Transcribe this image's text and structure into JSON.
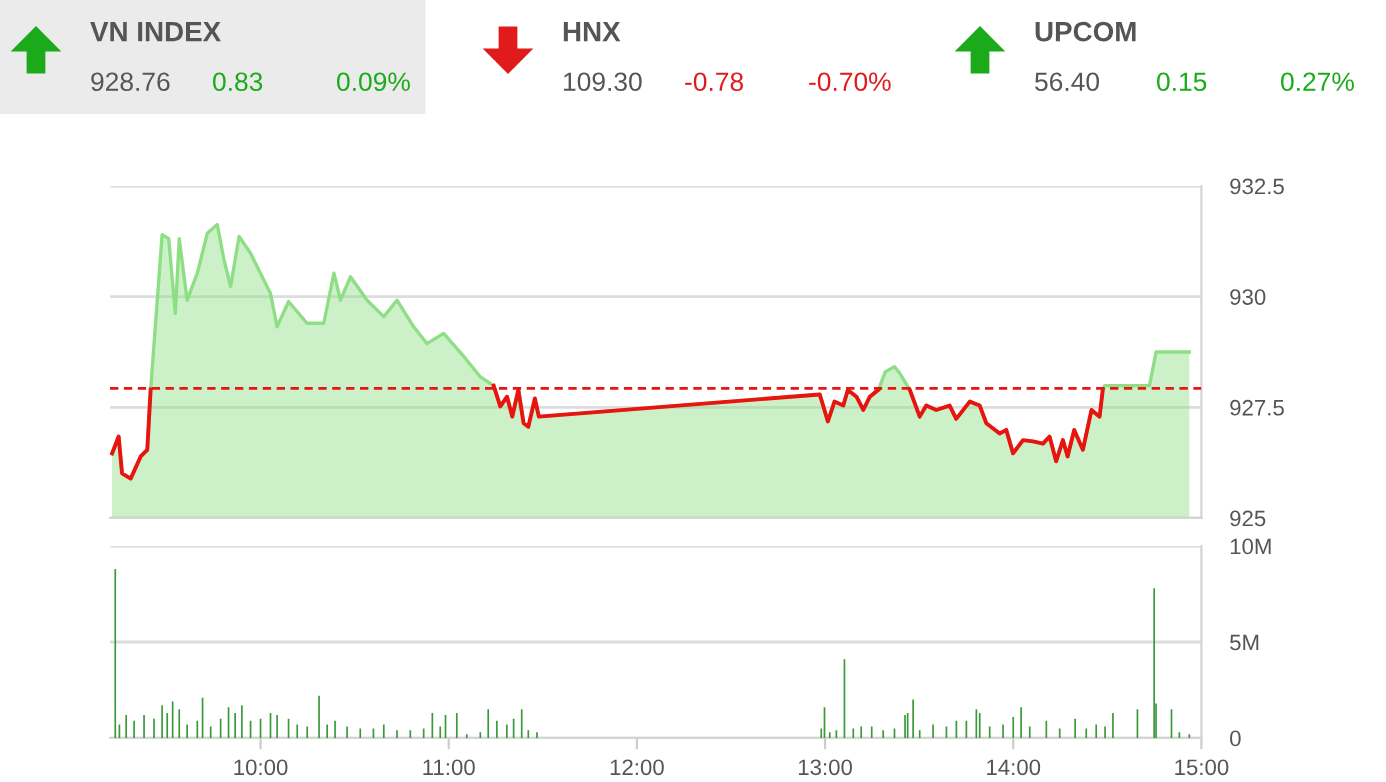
{
  "chart_data": [
    {
      "type": "other",
      "annotations": [
        "VN INDEX",
        "928.76",
        "0.83",
        "0.09%",
        "HNX",
        "109.30",
        "-0.78",
        "-0.70%",
        "UPCOM",
        "56.40",
        "0.15",
        "0.27%"
      ]
    },
    {
      "type": "area",
      "x": [
        9.211,
        9.246,
        9.264,
        9.31,
        9.363,
        9.398,
        9.416,
        9.477,
        9.512,
        9.547,
        9.568,
        9.61,
        9.664,
        9.717,
        9.77,
        9.806,
        9.841,
        9.886,
        9.947,
        10.053,
        10.088,
        10.149,
        10.247,
        10.336,
        10.39,
        10.425,
        10.478,
        10.566,
        10.655,
        10.725,
        10.814,
        10.884,
        10.973,
        11.08,
        11.168,
        11.239,
        11.274,
        11.31,
        11.338,
        11.37,
        11.398,
        11.423,
        11.458,
        11.479,
        12.972,
        13.015,
        13.05,
        13.097,
        13.121,
        13.167,
        13.203,
        13.238,
        13.284,
        13.32,
        13.369,
        13.397,
        13.45,
        13.503,
        13.538,
        13.591,
        13.662,
        13.697,
        13.769,
        13.822,
        13.857,
        13.928,
        13.963,
        13.999,
        14.052,
        14.105,
        14.158,
        14.193,
        14.228,
        14.264,
        14.289,
        14.324,
        14.37,
        14.416,
        14.459,
        14.476,
        14.487,
        14.724,
        14.759,
        14.936
      ],
      "series": [
        {
          "type": "area",
          "color": "#8ede86",
          "values": [
            926.46,
            926.84,
            926.01,
            925.89,
            926.39,
            926.54,
            927.9,
            931.4,
            931.31,
            929.62,
            931.31,
            929.92,
            930.53,
            931.43,
            931.63,
            930.83,
            930.23,
            931.36,
            930.98,
            930.07,
            929.32,
            929.89,
            929.4,
            929.4,
            930.53,
            929.92,
            930.45,
            929.92,
            929.55,
            929.92,
            929.32,
            928.94,
            929.17,
            928.65,
            928.19,
            927.99,
            927.52,
            927.74,
            927.29,
            927.9,
            927.14,
            927.06,
            927.7,
            927.29,
            927.79,
            927.18,
            927.63,
            927.54,
            927.89,
            927.74,
            927.44,
            927.74,
            927.9,
            928.3,
            928.42,
            928.27,
            927.9,
            927.29,
            927.54,
            927.44,
            927.54,
            927.24,
            927.63,
            927.54,
            927.14,
            926.91,
            926.99,
            926.46,
            926.76,
            926.73,
            926.68,
            926.84,
            926.28,
            926.76,
            926.39,
            926.99,
            926.54,
            927.44,
            927.29,
            927.9,
            927.99,
            927.99,
            928.75,
            928.75
          ]
        },
        {
          "type": "line",
          "color": "#e8140f",
          "values": [
            926.46,
            926.84,
            926.01,
            925.89,
            926.39,
            926.54,
            927.9,
            null,
            null,
            null,
            null,
            null,
            null,
            null,
            null,
            null,
            null,
            null,
            null,
            null,
            null,
            null,
            null,
            null,
            null,
            null,
            null,
            null,
            null,
            null,
            null,
            null,
            null,
            null,
            null,
            927.99,
            927.52,
            927.74,
            927.29,
            927.9,
            927.14,
            927.06,
            927.7,
            927.29,
            927.79,
            927.18,
            927.63,
            927.54,
            927.89,
            927.74,
            927.44,
            927.74,
            927.9,
            null,
            null,
            null,
            927.9,
            927.29,
            927.54,
            927.44,
            927.54,
            927.24,
            927.63,
            927.54,
            927.14,
            926.91,
            926.99,
            926.46,
            926.76,
            926.73,
            926.68,
            926.84,
            926.28,
            926.76,
            926.39,
            926.99,
            926.54,
            927.44,
            927.29,
            927.9,
            null,
            null,
            null,
            null
          ]
        }
      ],
      "xlim": [
        9.2,
        15
      ],
      "ylim": [
        925,
        932.5
      ],
      "yticks": [
        925,
        927.5,
        930,
        932.5
      ],
      "grid": "y",
      "tick_labels": "y",
      "ref_lines": [
        {
          "axis": "y",
          "value": 927.93,
          "color": "#e8140f",
          "line_style": "dashed"
        }
      ]
    },
    {
      "type": "bar",
      "color": "#3a9a3a",
      "x": [
        9.228,
        9.25,
        9.286,
        9.328,
        9.381,
        9.434,
        9.477,
        9.504,
        9.533,
        9.568,
        9.61,
        9.664,
        9.692,
        9.735,
        9.788,
        9.83,
        9.865,
        9.901,
        9.947,
        10.0,
        10.053,
        10.088,
        10.149,
        10.195,
        10.248,
        10.311,
        10.354,
        10.396,
        10.46,
        10.53,
        10.6,
        10.655,
        10.725,
        10.796,
        10.867,
        10.913,
        10.955,
        10.983,
        11.043,
        11.096,
        11.168,
        11.21,
        11.256,
        11.309,
        11.345,
        11.388,
        11.423,
        11.469,
        12.98,
        12.997,
        13.025,
        13.06,
        13.103,
        13.15,
        13.192,
        13.248,
        13.309,
        13.369,
        13.425,
        13.439,
        13.468,
        13.503,
        13.574,
        13.645,
        13.698,
        13.751,
        13.804,
        13.822,
        13.875,
        13.946,
        14.0,
        14.042,
        14.088,
        14.176,
        14.247,
        14.329,
        14.388,
        14.441,
        14.488,
        14.53,
        14.66,
        14.749,
        14.759,
        14.841,
        14.883,
        14.936
      ],
      "values": [
        8.8,
        0.7,
        1.2,
        0.9,
        1.2,
        1.0,
        1.7,
        1.3,
        1.9,
        1.5,
        0.7,
        0.9,
        2.1,
        0.6,
        1.0,
        1.6,
        1.3,
        1.7,
        0.9,
        1.0,
        1.3,
        1.2,
        1.0,
        0.7,
        0.6,
        2.2,
        0.7,
        0.9,
        0.6,
        0.5,
        0.5,
        0.7,
        0.4,
        0.4,
        0.5,
        1.3,
        0.6,
        1.2,
        1.3,
        0.2,
        0.3,
        1.5,
        0.9,
        0.7,
        1.0,
        1.5,
        0.4,
        0.3,
        0.5,
        1.6,
        0.3,
        0.4,
        4.1,
        0.5,
        0.6,
        0.6,
        0.4,
        0.5,
        1.2,
        1.3,
        2.0,
        0.4,
        0.7,
        0.6,
        0.9,
        0.9,
        1.5,
        1.3,
        0.6,
        0.7,
        1.1,
        1.6,
        0.6,
        0.9,
        0.5,
        1.0,
        0.5,
        0.7,
        0.6,
        1.3,
        1.5,
        7.8,
        1.8,
        1.5,
        0.3,
        0.2
      ],
      "xlim": [
        9.2,
        15
      ],
      "xticks": [
        {
          "value": 10,
          "label": "10:00"
        },
        {
          "value": 11,
          "label": "11:00"
        },
        {
          "value": 12,
          "label": "12:00"
        },
        {
          "value": 13,
          "label": "13:00"
        },
        {
          "value": 14,
          "label": "14:00"
        },
        {
          "value": 15,
          "label": "15:00"
        }
      ],
      "ylim": [
        0,
        10
      ],
      "yticks": [
        0,
        {
          "value": 5,
          "label": "5M"
        },
        {
          "value": 10,
          "label": "10M"
        }
      ],
      "grid": "y"
    }
  ]
}
